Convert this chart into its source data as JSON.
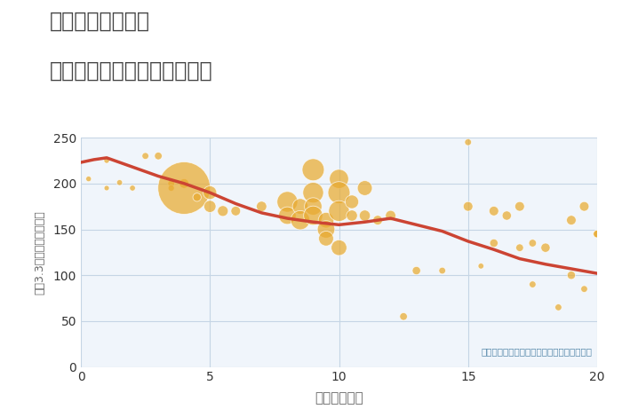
{
  "title_line1": "埼玉県和光市駅の",
  "title_line2": "駅距離別中古マンション価格",
  "xlabel": "駅距離（分）",
  "ylabel": "平（3.3㎡）単価（万円）",
  "annotation": "円の大きさは、取引のあった物件面積を示す",
  "xlim": [
    0,
    20
  ],
  "ylim": [
    0,
    250
  ],
  "yticks": [
    0,
    50,
    100,
    150,
    200,
    250
  ],
  "xticks": [
    0,
    5,
    10,
    15,
    20
  ],
  "background_color": "#f0f5fb",
  "grid_color": "#c5d5e5",
  "bubble_color": "#e8aa30",
  "bubble_edge_color": "#ffffff",
  "bubble_alpha": 0.72,
  "line_color": "#cc4433",
  "line_width": 2.5,
  "trend_x": [
    0,
    0.5,
    1,
    1.5,
    2,
    3,
    4,
    5,
    6,
    7,
    8,
    9,
    10,
    11,
    12,
    13,
    14,
    15,
    16,
    17,
    18,
    19,
    20
  ],
  "trend_y": [
    223,
    226,
    228,
    223,
    218,
    208,
    200,
    190,
    178,
    168,
    162,
    158,
    155,
    158,
    162,
    155,
    148,
    137,
    128,
    118,
    112,
    107,
    102
  ],
  "scatter_x": [
    0.3,
    1.0,
    1.0,
    1.5,
    2.0,
    2.5,
    3.0,
    3.5,
    3.5,
    4.0,
    4.0,
    4.5,
    5.0,
    5.0,
    5.5,
    6.0,
    7.0,
    8.0,
    8.0,
    8.5,
    8.5,
    9.0,
    9.0,
    9.0,
    9.0,
    9.5,
    9.5,
    9.5,
    10.0,
    10.0,
    10.0,
    10.0,
    10.5,
    10.5,
    11.0,
    11.0,
    11.5,
    12.0,
    12.5,
    13.0,
    14.0,
    15.0,
    15.0,
    15.5,
    16.0,
    16.0,
    16.5,
    17.0,
    17.0,
    17.5,
    17.5,
    18.0,
    18.5,
    19.0,
    19.0,
    19.5,
    19.5,
    20.0,
    20.0
  ],
  "scatter_y": [
    205,
    225,
    195,
    201,
    195,
    230,
    230,
    200,
    195,
    200,
    195,
    185,
    190,
    175,
    170,
    170,
    175,
    180,
    165,
    175,
    160,
    215,
    190,
    175,
    165,
    160,
    150,
    140,
    205,
    190,
    170,
    130,
    180,
    165,
    195,
    165,
    160,
    165,
    55,
    105,
    105,
    245,
    175,
    110,
    170,
    135,
    165,
    175,
    130,
    135,
    90,
    130,
    65,
    160,
    100,
    175,
    85,
    145,
    145
  ],
  "scatter_size": [
    20,
    20,
    18,
    22,
    22,
    30,
    38,
    30,
    26,
    60,
    1800,
    45,
    120,
    95,
    75,
    60,
    70,
    280,
    200,
    160,
    240,
    320,
    280,
    200,
    240,
    160,
    200,
    145,
    240,
    320,
    280,
    160,
    120,
    80,
    145,
    80,
    60,
    70,
    38,
    45,
    30,
    30,
    60,
    22,
    60,
    45,
    55,
    60,
    38,
    38,
    30,
    55,
    30,
    60,
    45,
    60,
    30,
    38,
    38
  ],
  "title_color": "#444444",
  "axis_color": "#666666",
  "tick_color": "#333333",
  "annotation_color": "#5588aa"
}
